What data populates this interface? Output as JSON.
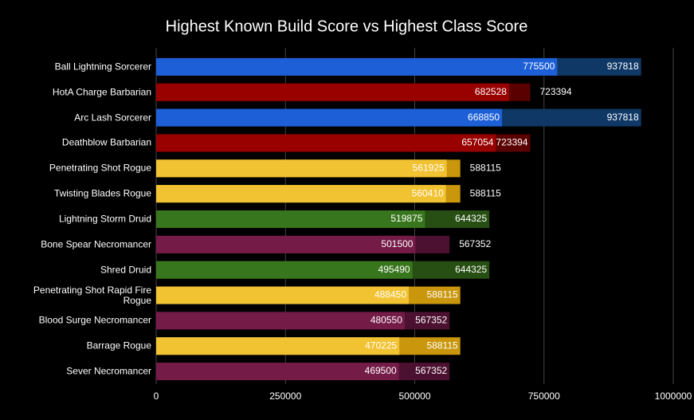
{
  "chart_data": {
    "type": "overlap-bar",
    "title": "Highest Known Build Score vs Highest Class Score",
    "categories": [
      "Ball Lightning Sorcerer",
      "HotA Charge Barbarian",
      "Arc Lash Sorcerer",
      "Deathblow Barbarian",
      "Penetrating Shot Rogue",
      "Twisting Blades Rogue",
      "Lightning Storm Druid",
      "Bone Spear Necromancer",
      "Shred Druid",
      "Penetrating Shot Rapid Fire Rogue",
      "Blood Surge Necromancer",
      "Barrage Rogue",
      "Sever Necromancer"
    ],
    "series": [
      {
        "values": [
          775500,
          682528,
          668850,
          657054,
          561925,
          560410,
          519875,
          501500,
          495490,
          488450,
          480550,
          470225,
          469500
        ],
        "colors": [
          "#1c5fd6",
          "#990000",
          "#1c5fd6",
          "#990000",
          "#f1c232",
          "#f1c232",
          "#38761d",
          "#741b47",
          "#38761d",
          "#f1c232",
          "#741b47",
          "#f1c232",
          "#741b47"
        ]
      },
      {
        "values": [
          937818,
          723394,
          937818,
          723394,
          588115,
          588115,
          644325,
          567352,
          644325,
          588115,
          567352,
          588115,
          567352
        ],
        "colors": [
          "#0f3866",
          "#5a0000",
          "#0f3866",
          "#5a0000",
          "#c9960c",
          "#c9960c",
          "#274e13",
          "#4c1130",
          "#274e13",
          "#c9960c",
          "#4c1130",
          "#c9960c",
          "#4c1130"
        ]
      }
    ],
    "xlim": [
      0,
      1000000
    ],
    "xticks": [
      0,
      250000,
      500000,
      750000,
      1000000
    ],
    "grid": true
  }
}
